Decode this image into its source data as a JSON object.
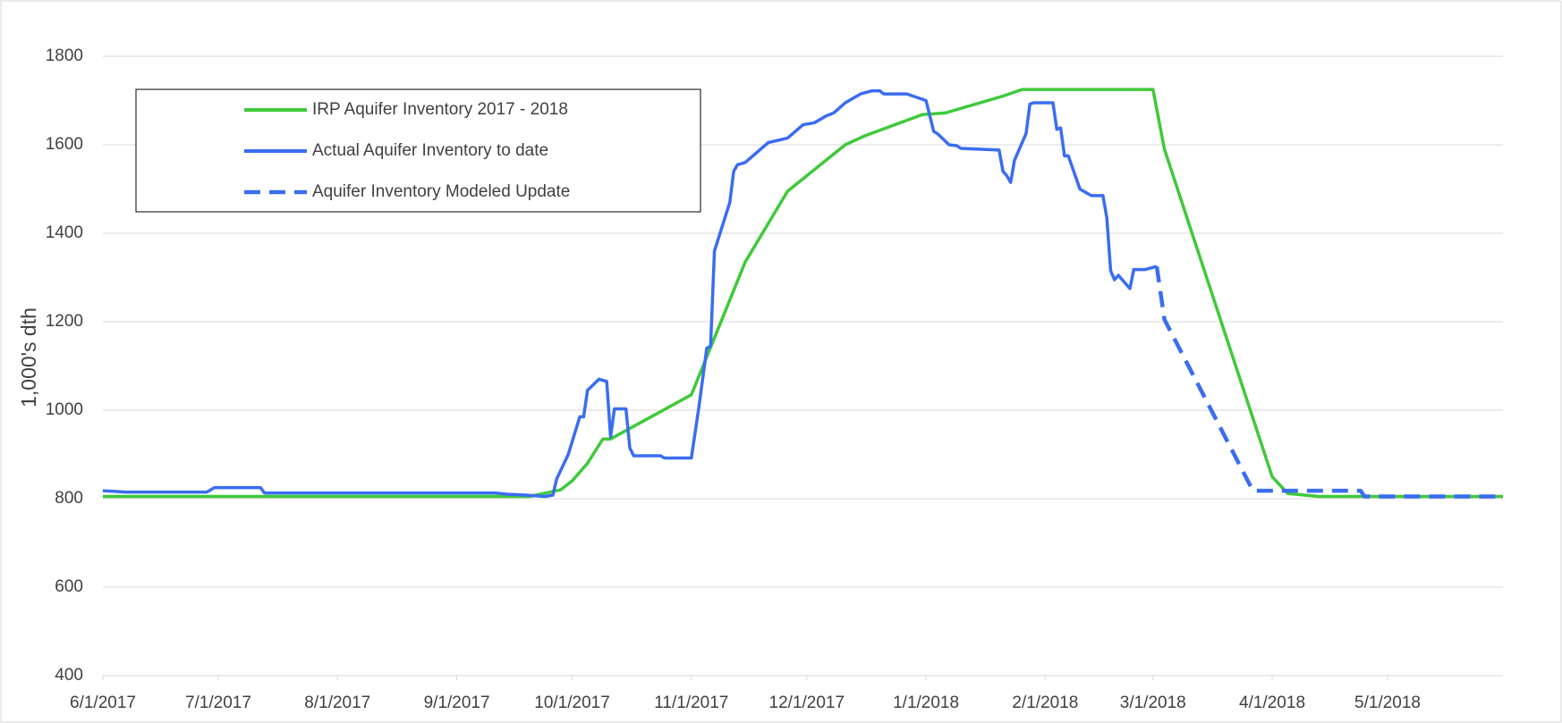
{
  "chart_data": {
    "type": "line",
    "y_label": "1,000's dth",
    "ylim": [
      400,
      1800
    ],
    "yticks": [
      400,
      600,
      800,
      1000,
      1200,
      1400,
      1600,
      1800
    ],
    "xlim": [
      "2017-06-01",
      "2018-05-31"
    ],
    "xticks": [
      {
        "value": "2017-06-01",
        "label": "6/1/2017"
      },
      {
        "value": "2017-07-01",
        "label": "7/1/2017"
      },
      {
        "value": "2017-08-01",
        "label": "8/1/2017"
      },
      {
        "value": "2017-09-01",
        "label": "9/1/2017"
      },
      {
        "value": "2017-10-01",
        "label": "10/1/2017"
      },
      {
        "value": "2017-11-01",
        "label": "11/1/2017"
      },
      {
        "value": "2017-12-01",
        "label": "12/1/2017"
      },
      {
        "value": "2018-01-01",
        "label": "1/1/2018"
      },
      {
        "value": "2018-02-01",
        "label": "2/1/2018"
      },
      {
        "value": "2018-03-01",
        "label": "3/1/2018"
      },
      {
        "value": "2018-04-01",
        "label": "4/1/2018"
      },
      {
        "value": "2018-05-01",
        "label": "5/1/2018"
      }
    ],
    "grid": true,
    "legend": "upper left",
    "series": [
      {
        "name": "IRP Aquifer Inventory 2017 - 2018",
        "color": "#3fc93a",
        "style": "solid",
        "x": [
          "2017-06-01",
          "2017-09-20",
          "2017-09-28",
          "2017-10-01",
          "2017-10-05",
          "2017-10-09",
          "2017-10-11",
          "2017-11-01",
          "2017-11-15",
          "2017-11-26",
          "2017-12-11",
          "2017-12-16",
          "2017-12-31",
          "2018-01-06",
          "2018-01-21",
          "2018-01-26",
          "2018-03-01",
          "2018-03-04",
          "2018-04-01",
          "2018-04-05",
          "2018-04-13",
          "2018-05-31"
        ],
        "values": [
          805,
          805,
          820,
          840,
          880,
          935,
          935,
          1035,
          1335,
          1495,
          1600,
          1620,
          1668,
          1672,
          1710,
          1725,
          1725,
          1590,
          850,
          812,
          805,
          805
        ]
      },
      {
        "name": "Actual Aquifer Inventory to date",
        "color": "#3a6df0",
        "style": "solid",
        "x": [
          "2017-06-01",
          "2017-06-07",
          "2017-06-28",
          "2017-06-30",
          "2017-07-12",
          "2017-07-13",
          "2017-09-11",
          "2017-09-14",
          "2017-09-19",
          "2017-09-24",
          "2017-09-26",
          "2017-09-27",
          "2017-09-30",
          "2017-10-03",
          "2017-10-04",
          "2017-10-05",
          "2017-10-08",
          "2017-10-10",
          "2017-10-11",
          "2017-10-12",
          "2017-10-15",
          "2017-10-16",
          "2017-10-17",
          "2017-10-24",
          "2017-10-25",
          "2017-11-01",
          "2017-11-03",
          "2017-11-05",
          "2017-11-06",
          "2017-11-07",
          "2017-11-11",
          "2017-11-12",
          "2017-11-13",
          "2017-11-15",
          "2017-11-21",
          "2017-11-26",
          "2017-11-30",
          "2017-12-03",
          "2017-12-06",
          "2017-12-08",
          "2017-12-11",
          "2017-12-15",
          "2017-12-18",
          "2017-12-20",
          "2017-12-21",
          "2017-12-27",
          "2018-01-01",
          "2018-01-03",
          "2018-01-04",
          "2018-01-07",
          "2018-01-09",
          "2018-01-10",
          "2018-01-20",
          "2018-01-21",
          "2018-01-22",
          "2018-01-23",
          "2018-01-24",
          "2018-01-27",
          "2018-01-28",
          "2018-01-29",
          "2018-02-03",
          "2018-02-04",
          "2018-02-05",
          "2018-02-06",
          "2018-02-07",
          "2018-02-10",
          "2018-02-12",
          "2018-02-13",
          "2018-02-16",
          "2018-02-17",
          "2018-02-18",
          "2018-02-19",
          "2018-02-20",
          "2018-02-23",
          "2018-02-24",
          "2018-02-27",
          "2018-03-02"
        ],
        "values": [
          818,
          815,
          815,
          825,
          825,
          813,
          813,
          810,
          808,
          805,
          808,
          845,
          900,
          985,
          985,
          1045,
          1070,
          1065,
          940,
          1003,
          1003,
          915,
          897,
          897,
          892,
          892,
          1010,
          1140,
          1145,
          1360,
          1470,
          1540,
          1555,
          1560,
          1605,
          1615,
          1645,
          1650,
          1665,
          1672,
          1695,
          1715,
          1722,
          1722,
          1715,
          1715,
          1700,
          1630,
          1625,
          1600,
          1598,
          1592,
          1588,
          1540,
          1530,
          1515,
          1565,
          1625,
          1692,
          1695,
          1695,
          1635,
          1638,
          1575,
          1575,
          1500,
          1490,
          1485,
          1485,
          1435,
          1315,
          1295,
          1305,
          1275,
          1318,
          1318,
          1325
        ]
      },
      {
        "name": "Aquifer Inventory Modeled Update",
        "color": "#3a6df0",
        "style": "dashed",
        "x": [
          "2018-03-02",
          "2018-03-04",
          "2018-03-27",
          "2018-04-24",
          "2018-04-25",
          "2018-05-31"
        ],
        "values": [
          1325,
          1205,
          818,
          818,
          805,
          805
        ]
      }
    ]
  }
}
